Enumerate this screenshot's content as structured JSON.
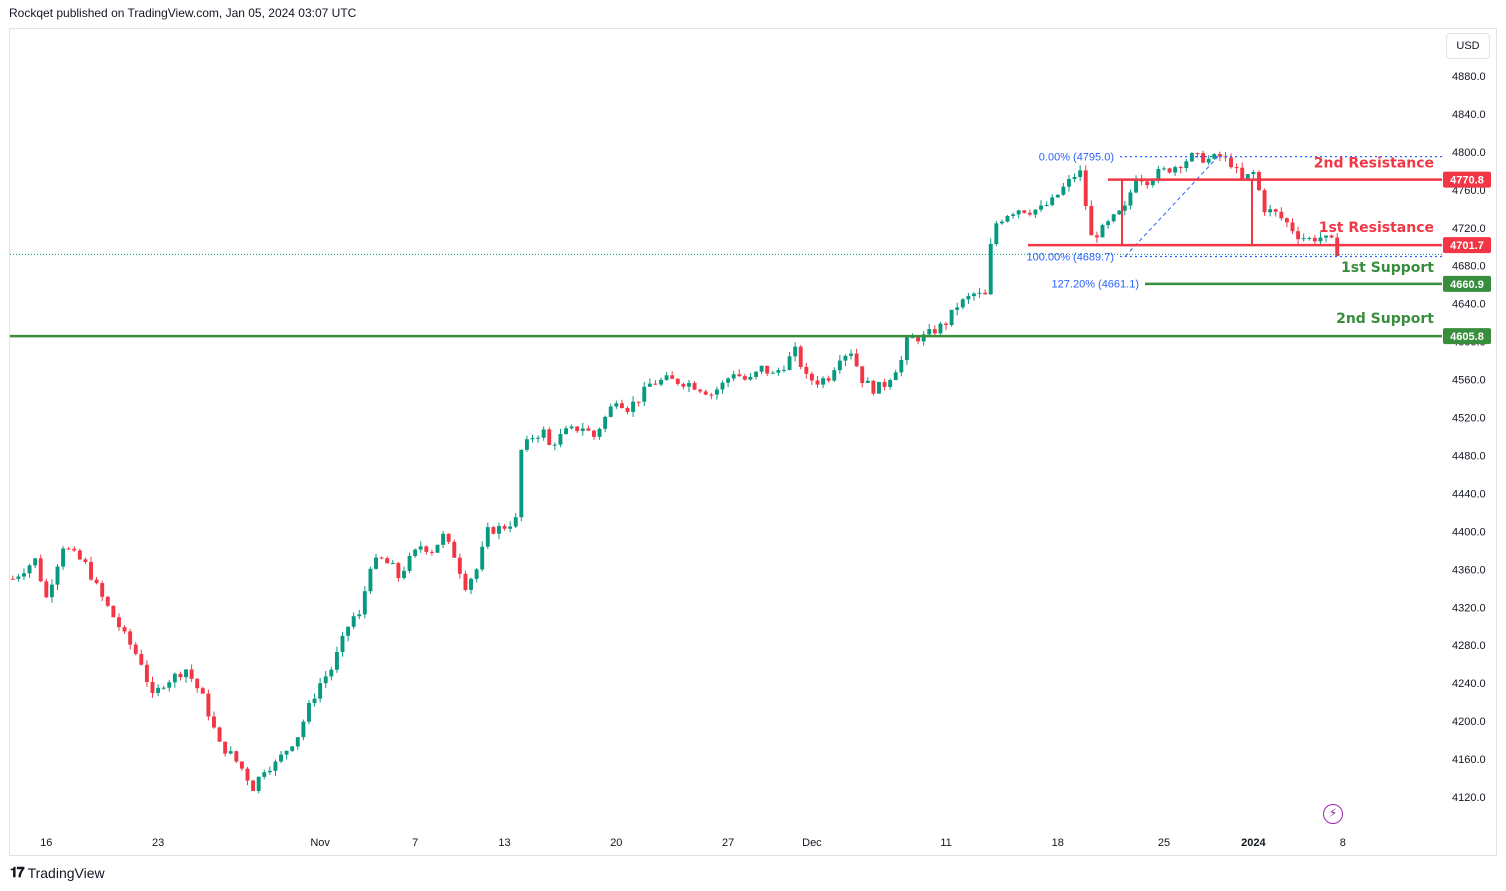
{
  "header": {
    "text": "Rockqet published on TradingView.com, Jan 05, 2024 03:07 UTC"
  },
  "footer": {
    "brand": "TradingView",
    "logo_icon": "tradingview-logo-icon"
  },
  "currency_label": "USD",
  "bolt_icon": "lightning-icon",
  "colors": {
    "up": "#089981",
    "down": "#f23645",
    "resistance": "#f23645",
    "support": "#388e3c",
    "fib": "#2962ff",
    "axis_text": "#131722",
    "grid": "#e0e3eb"
  },
  "chart_data": {
    "type": "candlestick",
    "title": "",
    "ylim": [
      4090,
      4910
    ],
    "y_ticks": [
      4120.0,
      4160.0,
      4200.0,
      4240.0,
      4280.0,
      4320.0,
      4360.0,
      4400.0,
      4440.0,
      4480.0,
      4520.0,
      4560.0,
      4600.0,
      4640.0,
      4680.0,
      4720.0,
      4760.0,
      4800.0,
      4840.0,
      4880.0
    ],
    "x_ticks": [
      "16",
      "23",
      "Nov",
      "7",
      "13",
      "20",
      "27",
      "Dec",
      "11",
      "18",
      "25",
      "2024",
      "8"
    ],
    "x_tick_bold": [
      false,
      false,
      false,
      false,
      false,
      false,
      false,
      false,
      false,
      false,
      false,
      true,
      false
    ],
    "price_path": [
      [
        0,
        4350
      ],
      [
        4,
        4370
      ],
      [
        6,
        4330
      ],
      [
        9,
        4385
      ],
      [
        13,
        4365
      ],
      [
        16,
        4330
      ],
      [
        20,
        4290
      ],
      [
        23,
        4262
      ],
      [
        25,
        4225
      ],
      [
        27,
        4240
      ],
      [
        31,
        4255
      ],
      [
        34,
        4225
      ],
      [
        37,
        4175
      ],
      [
        39,
        4165
      ],
      [
        41,
        4150
      ],
      [
        43,
        4130
      ],
      [
        45,
        4150
      ],
      [
        47,
        4155
      ],
      [
        49,
        4170
      ],
      [
        51,
        4185
      ],
      [
        53,
        4215
      ],
      [
        55,
        4240
      ],
      [
        57,
        4255
      ],
      [
        60,
        4300
      ],
      [
        61,
        4310
      ],
      [
        62,
        4310
      ],
      [
        64,
        4365
      ],
      [
        66,
        4370
      ],
      [
        68,
        4362
      ],
      [
        69,
        4352
      ],
      [
        71,
        4370
      ],
      [
        73,
        4385
      ],
      [
        75,
        4380
      ],
      [
        77,
        4395
      ],
      [
        79,
        4375
      ],
      [
        81,
        4343
      ],
      [
        83,
        4360
      ],
      [
        85,
        4400
      ],
      [
        88,
        4405
      ],
      [
        90,
        4412
      ],
      [
        91,
        4485
      ],
      [
        93,
        4500
      ],
      [
        95,
        4505
      ],
      [
        96,
        4490
      ],
      [
        99,
        4505
      ],
      [
        102,
        4510
      ],
      [
        104,
        4500
      ],
      [
        106,
        4520
      ],
      [
        108,
        4540
      ],
      [
        110,
        4530
      ],
      [
        112,
        4540
      ],
      [
        114,
        4555
      ],
      [
        117,
        4560
      ],
      [
        119,
        4558
      ],
      [
        121,
        4556
      ],
      [
        123,
        4551
      ],
      [
        125,
        4545
      ],
      [
        127,
        4555
      ],
      [
        129,
        4568
      ],
      [
        131,
        4560
      ],
      [
        132,
        4560
      ],
      [
        134,
        4572
      ],
      [
        136,
        4565
      ],
      [
        138,
        4575
      ],
      [
        140,
        4590
      ],
      [
        142,
        4562
      ],
      [
        144,
        4558
      ],
      [
        146,
        4563
      ],
      [
        148,
        4585
      ],
      [
        150,
        4590
      ],
      [
        152,
        4560
      ],
      [
        154,
        4550
      ],
      [
        156,
        4555
      ],
      [
        159,
        4580
      ],
      [
        160,
        4600
      ],
      [
        161,
        4603
      ],
      [
        163,
        4605
      ],
      [
        165,
        4612
      ],
      [
        167,
        4620
      ],
      [
        169,
        4638
      ],
      [
        172,
        4650
      ],
      [
        174,
        4648
      ],
      [
        175,
        4700
      ],
      [
        176,
        4725
      ],
      [
        178,
        4735
      ],
      [
        180,
        4740
      ],
      [
        182,
        4738
      ],
      [
        184,
        4740
      ],
      [
        186,
        4748
      ],
      [
        188,
        4762
      ],
      [
        190,
        4775
      ],
      [
        191,
        4778
      ],
      [
        193,
        4710
      ],
      [
        195,
        4718
      ],
      [
        197,
        4730
      ],
      [
        199,
        4740
      ],
      [
        201,
        4775
      ],
      [
        203,
        4770
      ],
      [
        205,
        4778
      ],
      [
        207,
        4782
      ],
      [
        209,
        4788
      ],
      [
        211,
        4795
      ],
      [
        214,
        4792
      ],
      [
        216,
        4795
      ],
      [
        218,
        4788
      ],
      [
        220,
        4770
      ],
      [
        222,
        4778
      ],
      [
        224,
        4740
      ],
      [
        226,
        4735
      ],
      [
        228,
        4725
      ],
      [
        230,
        4712
      ],
      [
        232,
        4708
      ],
      [
        234,
        4710
      ],
      [
        236,
        4705
      ],
      [
        237,
        4695
      ]
    ],
    "candle_count": 238,
    "date_tick_index": [
      6,
      26,
      55,
      72,
      88,
      108,
      128,
      143,
      167,
      187,
      206,
      222,
      238
    ],
    "levels": [
      {
        "name": "2nd Resistance",
        "value": 4770.8,
        "label": "4770.8",
        "kind": "resistance"
      },
      {
        "name": "1st Resistance",
        "value": 4701.7,
        "label": "4701.7",
        "kind": "resistance"
      },
      {
        "name": "1st Support",
        "value": 4660.9,
        "label": "4660.9",
        "kind": "support"
      },
      {
        "name": "2nd Support",
        "value": 4605.8,
        "label": "4605.8",
        "kind": "support"
      }
    ],
    "fibonacci": [
      {
        "label": "0.00% (4795.0)",
        "value": 4795.0
      },
      {
        "label": "100.00% (4689.7)",
        "value": 4689.7
      },
      {
        "label": "127.20% (4661.1)",
        "value": 4661.1
      }
    ],
    "last_price": 4692.0
  }
}
